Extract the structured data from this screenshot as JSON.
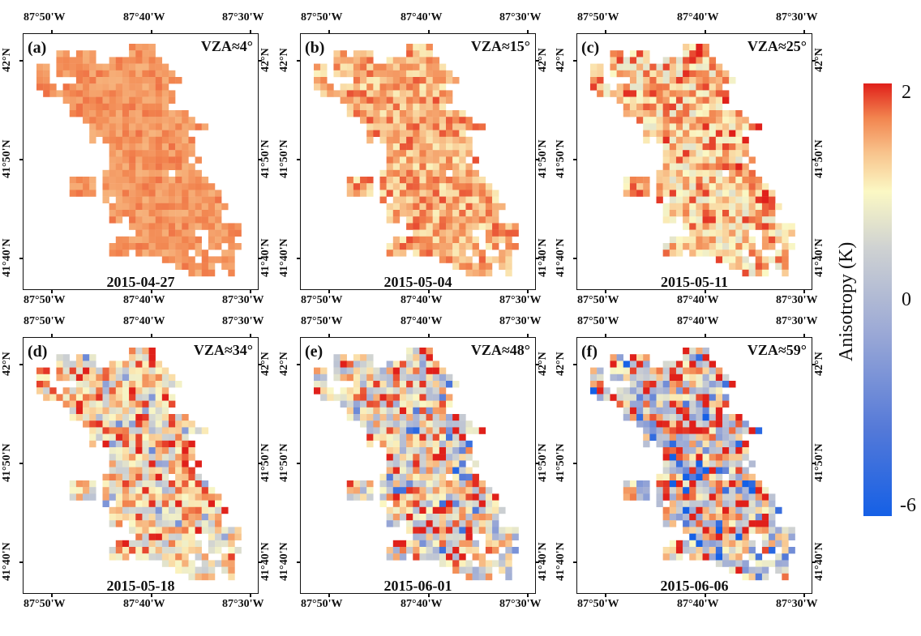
{
  "panels": [
    {
      "label": "(a)",
      "vza": "VZA≈4°",
      "date": "2015-04-27"
    },
    {
      "label": "(b)",
      "vza": "VZA≈15°",
      "date": "2015-05-04"
    },
    {
      "label": "(c)",
      "vza": "VZA≈25°",
      "date": "2015-05-11"
    },
    {
      "label": "(d)",
      "vza": "VZA≈34°",
      "date": "2015-05-18"
    },
    {
      "label": "(e)",
      "vza": "VZA≈48°",
      "date": "2015-06-01"
    },
    {
      "label": "(f)",
      "vza": "VZA≈59°",
      "date": "2015-06-06"
    }
  ],
  "axes": {
    "lon_ticks": [
      "87°50'W",
      "87°40'W",
      "87°30'W"
    ],
    "lat_ticks": [
      "42°N",
      "41°50'N",
      "41°40'N"
    ]
  },
  "colorbar": {
    "title": "Anisotropy (K)",
    "max_label": "2",
    "mid_label": "0",
    "min_label": "-6",
    "range": [
      -6,
      2
    ],
    "colors": {
      "min": "#1560e6",
      "zero": "#fbf8c4",
      "max": "#e0201a"
    }
  }
}
